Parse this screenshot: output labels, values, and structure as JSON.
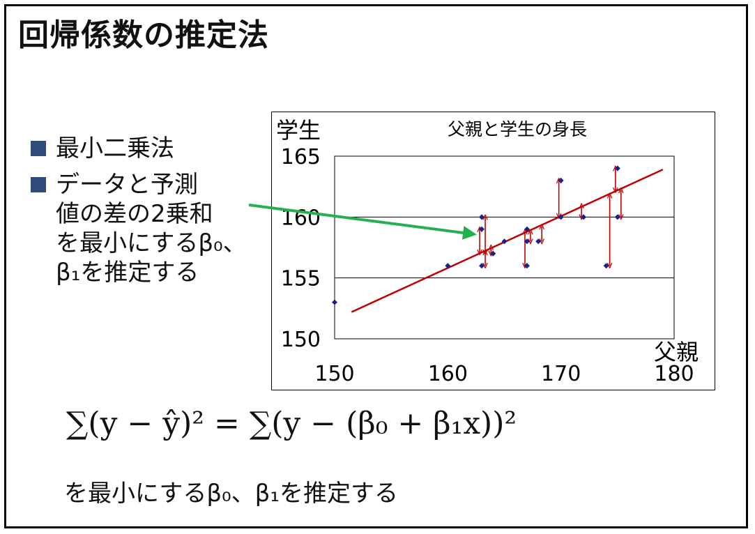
{
  "slide": {
    "title": "回帰係数の推定法",
    "bullets": [
      {
        "lines": [
          "最小二乗法"
        ]
      },
      {
        "lines": [
          "データと予測",
          "値の差の2乗和",
          "を最小にするβ₀、",
          "β₁を推定する"
        ]
      }
    ],
    "formula": {
      "lhs": "∑(y − ŷ)²",
      "eq": "=",
      "rhs": "∑(y − (β₀ + β₁x))²"
    },
    "caption": "を最小にするβ₀、β₁を推定する"
  },
  "colors": {
    "bullet": "#2e4d7b",
    "points": "#1a1f8c",
    "regression": "#c00000",
    "arrows": "#c00000",
    "pointer_arrow": "#22b14c"
  },
  "chart_data": {
    "type": "scatter",
    "title": "父親と学生の身長",
    "xlabel": "父親",
    "ylabel": "学生",
    "xlim": [
      150,
      180
    ],
    "ylim": [
      150,
      165
    ],
    "xticks": [
      150,
      160,
      170,
      180
    ],
    "yticks": [
      150,
      155,
      160,
      165
    ],
    "gridlines_y": [
      155,
      160
    ],
    "points": [
      {
        "x": 150,
        "y": 153
      },
      {
        "x": 160,
        "y": 156
      },
      {
        "x": 163,
        "y": 160
      },
      {
        "x": 163,
        "y": 159
      },
      {
        "x": 163,
        "y": 156
      },
      {
        "x": 164,
        "y": 157
      },
      {
        "x": 165,
        "y": 158
      },
      {
        "x": 167,
        "y": 159
      },
      {
        "x": 167,
        "y": 158
      },
      {
        "x": 167,
        "y": 156
      },
      {
        "x": 168,
        "y": 158
      },
      {
        "x": 170,
        "y": 163
      },
      {
        "x": 170,
        "y": 160
      },
      {
        "x": 172,
        "y": 160
      },
      {
        "x": 174,
        "y": 156
      },
      {
        "x": 175,
        "y": 164
      },
      {
        "x": 175,
        "y": 160
      }
    ],
    "regression_line": {
      "x": [
        151.5,
        179
      ],
      "y": [
        152.2,
        163.9
      ]
    }
  }
}
